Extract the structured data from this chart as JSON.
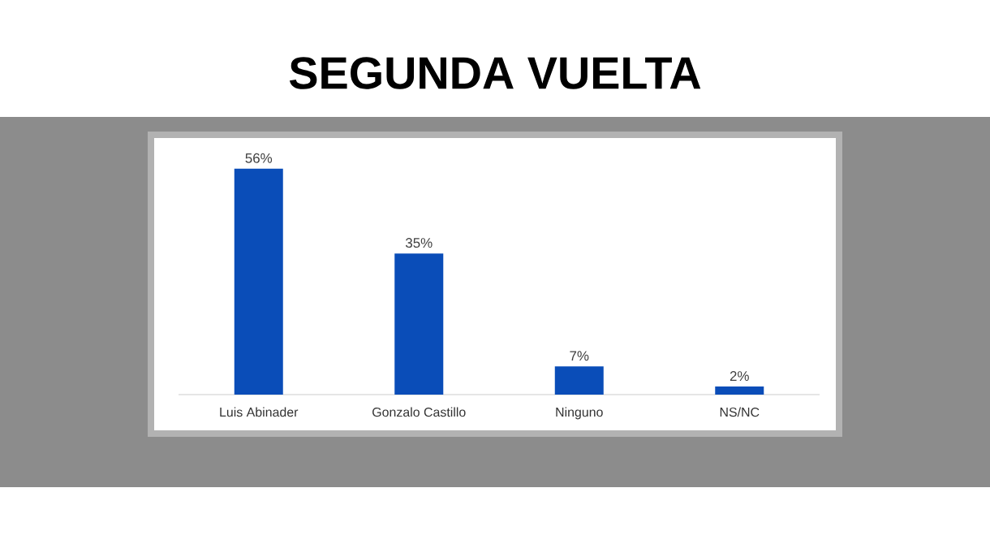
{
  "chart_data": {
    "type": "bar",
    "title": "SEGUNDA VUELTA",
    "categories": [
      "Luis Abinader",
      "Gonzalo Castillo",
      "Ninguno",
      "NS/NC"
    ],
    "values": [
      56,
      35,
      7,
      2
    ],
    "value_labels": [
      "56%",
      "35%",
      "7%",
      "2%"
    ],
    "color": "#0a4db8"
  }
}
